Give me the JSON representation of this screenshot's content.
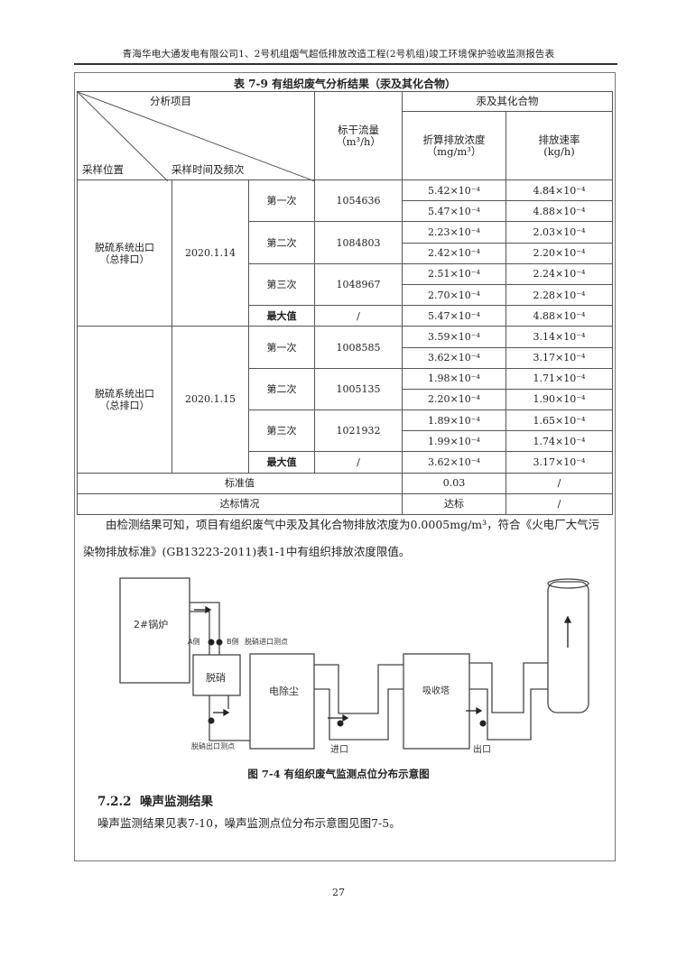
{
  "header": "青海华电大通发电有限公司1、2号机组烟气超低排放改造工程(2号机组)竣工环境保护验收监测报告表",
  "table": {
    "caption": "表 7-9    有组织废气分析结果（汞及其化合物）",
    "head": {
      "analysis_item": "分析项目",
      "sampling_location": "采样位置",
      "sampling_time": "采样时间及频次",
      "flow": "标干流量",
      "flow_unit": "（m³/h）",
      "group": "汞及其化合物",
      "conc": "折算排放浓度",
      "conc_unit": "（mg/m³）",
      "rate": "排放速率",
      "rate_unit": "(kg/h)"
    },
    "groups": [
      {
        "location": "脱硫系统出口\n（总排口）",
        "date": "2020.1.14",
        "runs": [
          {
            "label": "第一次",
            "flow": "1054636",
            "conc": [
              "5.42×10⁻⁴",
              "5.47×10⁻⁴"
            ],
            "rate": [
              "4.84×10⁻⁴",
              "4.88×10⁻⁴"
            ]
          },
          {
            "label": "第二次",
            "flow": "1084803",
            "conc": [
              "2.23×10⁻⁴",
              "2.42×10⁻⁴"
            ],
            "rate": [
              "2.03×10⁻⁴",
              "2.20×10⁻⁴"
            ]
          },
          {
            "label": "第三次",
            "flow": "1048967",
            "conc": [
              "2.51×10⁻⁴",
              "2.70×10⁻⁴"
            ],
            "rate": [
              "2.24×10⁻⁴",
              "2.28×10⁻⁴"
            ]
          }
        ],
        "max": {
          "label": "最大值",
          "flow": "/",
          "conc": "5.47×10⁻⁴",
          "rate": "4.88×10⁻⁴"
        }
      },
      {
        "location": "脱硫系统出口\n（总排口）",
        "date": "2020.1.15",
        "runs": [
          {
            "label": "第一次",
            "flow": "1008585",
            "conc": [
              "3.59×10⁻⁴",
              "3.62×10⁻⁴"
            ],
            "rate": [
              "3.14×10⁻⁴",
              "3.17×10⁻⁴"
            ]
          },
          {
            "label": "第二次",
            "flow": "1005135",
            "conc": [
              "1.98×10⁻⁴",
              "2.20×10⁻⁴"
            ],
            "rate": [
              "1.71×10⁻⁴",
              "1.90×10⁻⁴"
            ]
          },
          {
            "label": "第三次",
            "flow": "1021932",
            "conc": [
              "1.89×10⁻⁴",
              "1.99×10⁻⁴"
            ],
            "rate": [
              "1.65×10⁻⁴",
              "1.74×10⁻⁴"
            ]
          }
        ],
        "max": {
          "label": "最大值",
          "flow": "/",
          "conc": "3.62×10⁻⁴",
          "rate": "3.17×10⁻⁴"
        }
      }
    ],
    "standard": {
      "label": "标准值",
      "conc": "0.03",
      "rate": "/"
    },
    "compliance": {
      "label": "达标情况",
      "conc": "达标",
      "rate": "/"
    }
  },
  "paragraph1": "由检测结果可知，项目有组织废气中汞及其化合物排放浓度为0.0005mg/m³，符合《火电厂大气污染物排放标准》(GB13223-2011)表1-1中有组织排放浓度限值。",
  "figure": {
    "boiler": "2#锅炉",
    "side_a": "A侧",
    "side_b": "B侧",
    "denox_inlet": "脱硝进口测点",
    "denox": "脱硝",
    "denox_outlet": "脱硝出口测点",
    "esp": "电除尘",
    "inlet": "进口",
    "absorber": "吸收塔",
    "outlet": "出口",
    "caption": "图 7-4    有组织废气监测点位分布示意图"
  },
  "section": {
    "number": "7.2.2",
    "title": "噪声监测结果"
  },
  "paragraph2": "噪声监测结果见表7-10，噪声监测点位分布示意图见图7-5。",
  "page_number": "27"
}
